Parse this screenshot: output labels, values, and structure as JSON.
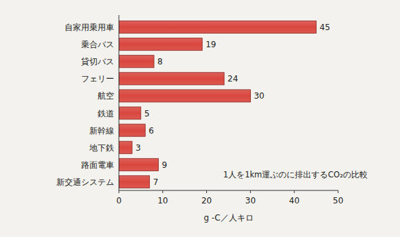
{
  "chart_data": {
    "type": "bar",
    "orientation": "horizontal",
    "categories": [
      "自家用乗用車",
      "乗合バス",
      "貸切バス",
      "フェリー",
      "航空",
      "鉄道",
      "新幹線",
      "地下鉄",
      "路面電車",
      "新交通システム"
    ],
    "values": [
      45,
      19,
      8,
      24,
      30,
      5,
      6,
      3,
      9,
      7
    ],
    "color": "#d9473f",
    "xlim": [
      0,
      50
    ],
    "xticks": [
      0,
      10,
      20,
      30,
      40,
      50
    ],
    "xlabel": "g -C／人キロ",
    "annotation": "1人を1km運ぶのに排出するCO₂の比較",
    "data_labels": true,
    "grid": false
  }
}
